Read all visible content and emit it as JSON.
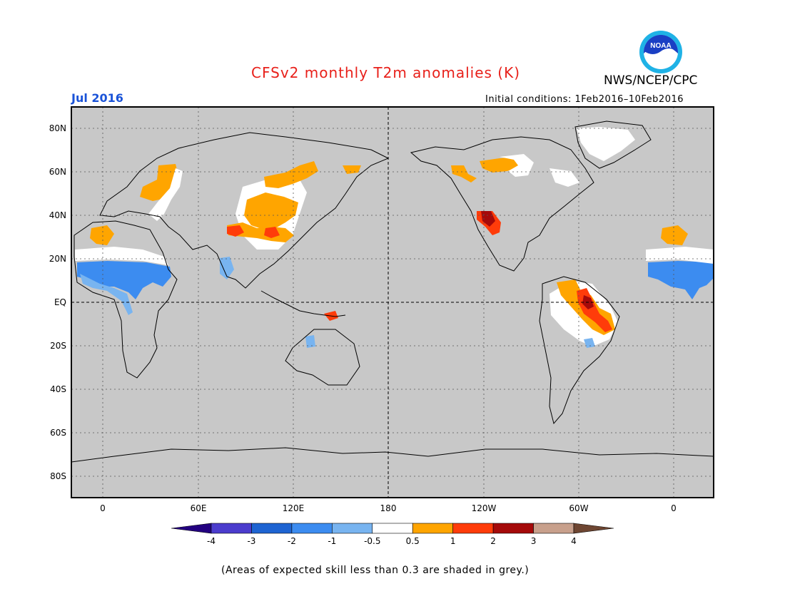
{
  "header": {
    "title": "CFSv2 monthly T2m anomalies (K)",
    "month": "Jul 2016",
    "agency": "NWS/NCEP/CPC",
    "initial_conditions": "Initial conditions: 1Feb2016–10Feb2016",
    "logo_text": "NOAA"
  },
  "colors": {
    "title": "#e8201a",
    "month": "#1a53d8",
    "map_background": "#c8c8c8",
    "skill_white": "#ffffff",
    "orange": "#ffa500",
    "red_orange": "#ff3c0a",
    "dark_red": "#a50a0a",
    "light_blue": "#78b4f0",
    "blue": "#3c8cf0"
  },
  "map": {
    "lat_labels": [
      "80N",
      "60N",
      "40N",
      "20N",
      "EQ",
      "20S",
      "40S",
      "60S",
      "80S"
    ],
    "lon_labels": [
      "0",
      "60E",
      "120E",
      "180",
      "120W",
      "60W",
      "0"
    ]
  },
  "colorbar": {
    "bins": [
      {
        "color": "#230080"
      },
      {
        "color": "#4b3ccd"
      },
      {
        "color": "#1e64d2"
      },
      {
        "color": "#3c8cf0"
      },
      {
        "color": "#78b4f0"
      },
      {
        "color": "#ffffff"
      },
      {
        "color": "#ffa500"
      },
      {
        "color": "#ff3c0a"
      },
      {
        "color": "#a50a0a"
      },
      {
        "color": "#c8a08c"
      },
      {
        "color": "#6e4632"
      }
    ],
    "labels": [
      "-4",
      "-3",
      "-2",
      "-1",
      "-0.5",
      "0.5",
      "1",
      "2",
      "3",
      "4"
    ]
  },
  "footnote": "(Areas of expected skill less than 0.3 are shaded in grey.)"
}
